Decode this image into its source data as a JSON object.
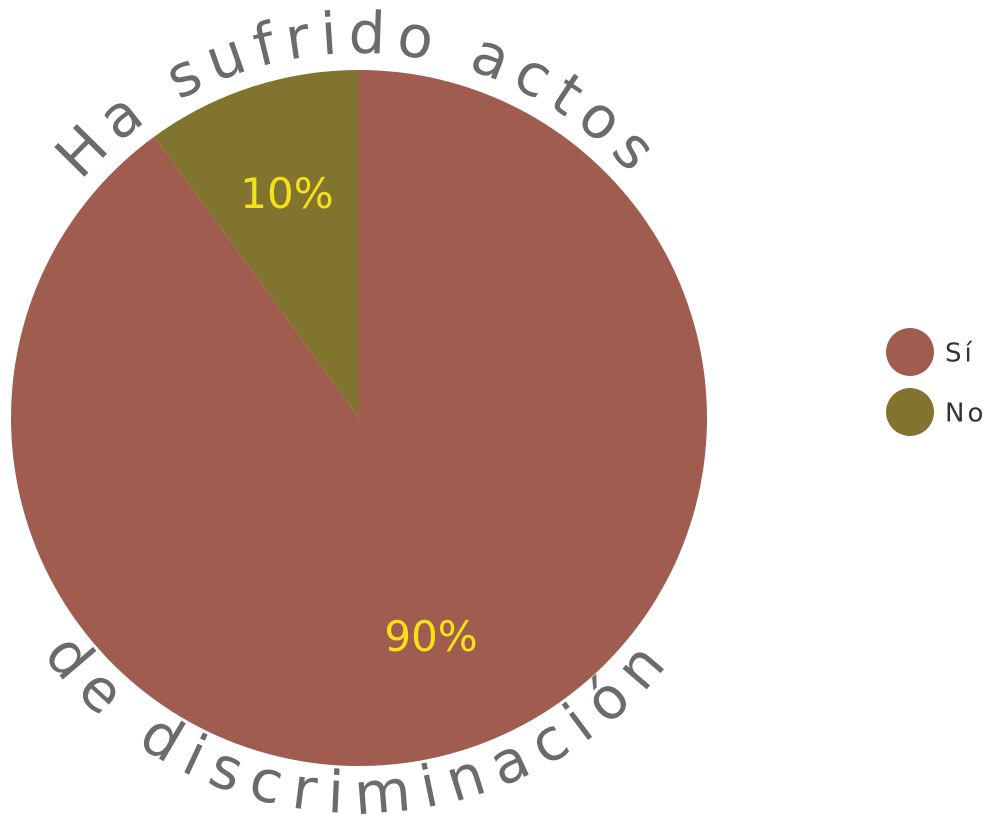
{
  "chart_data": {
    "type": "pie",
    "title": [
      "Ha sufrido actos",
      "de discriminación"
    ],
    "categories": [
      "Sí",
      "No"
    ],
    "values": [
      90,
      10
    ],
    "value_labels": [
      "90%",
      "10%"
    ],
    "colors": [
      "#a05c4f",
      "#80742e"
    ],
    "legend": "right"
  }
}
